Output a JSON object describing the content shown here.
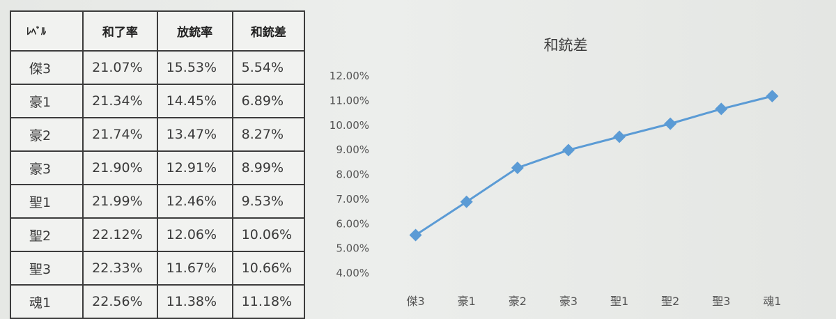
{
  "table": {
    "headers": [
      "ﾚﾍﾞﾙ",
      "和了率",
      "放銃率",
      "和銃差"
    ],
    "rows": [
      [
        "傑3",
        "21.07%",
        "15.53%",
        "5.54%"
      ],
      [
        "豪1",
        "21.34%",
        "14.45%",
        "6.89%"
      ],
      [
        "豪2",
        "21.74%",
        "13.47%",
        "8.27%"
      ],
      [
        "豪3",
        "21.90%",
        "12.91%",
        "8.99%"
      ],
      [
        "聖1",
        "21.99%",
        "12.46%",
        "9.53%"
      ],
      [
        "聖2",
        "22.12%",
        "12.06%",
        "10.06%"
      ],
      [
        "聖3",
        "22.33%",
        "11.67%",
        "10.66%"
      ],
      [
        "魂1",
        "22.56%",
        "11.38%",
        "11.18%"
      ]
    ]
  },
  "chart_data": {
    "type": "line",
    "title": "和銃差",
    "categories": [
      "傑3",
      "豪1",
      "豪2",
      "豪3",
      "聖1",
      "聖2",
      "聖3",
      "魂1"
    ],
    "series": [
      {
        "values": [
          5.54,
          6.89,
          8.27,
          8.99,
          9.53,
          10.06,
          10.66,
          11.18
        ]
      }
    ],
    "ylim": [
      4,
      12
    ],
    "yticks": [
      "4.00%",
      "5.00%",
      "6.00%",
      "7.00%",
      "8.00%",
      "9.00%",
      "10.00%",
      "11.00%",
      "12.00%"
    ],
    "grid": false,
    "legend": "none",
    "marker": "diamond",
    "line_color": "#5b9bd5"
  }
}
